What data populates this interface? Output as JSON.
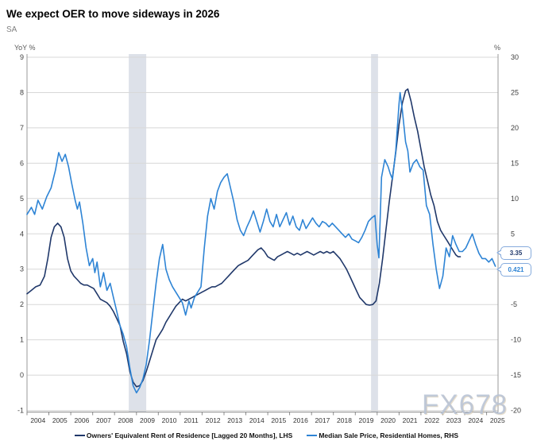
{
  "header": {
    "title": "We expect OER to move sideways in 2026",
    "subtitle": "SA"
  },
  "watermark": {
    "text": "FX678"
  },
  "colors": {
    "oer_line": "#20386a",
    "median_sale_line": "#2e84d5",
    "recession_band": "#dde1e9",
    "gridline": "#d8d8d8",
    "axis_line": "#999999",
    "callout_border": "#86abdd"
  },
  "chart_data": {
    "type": "line",
    "title": "We expect OER to move sideways in 2026",
    "subtitle": "SA",
    "grid": true,
    "legend_position": "bottom",
    "x_axis": {
      "labels": [
        "2004",
        "2005",
        "2006",
        "2007",
        "2008",
        "2009",
        "2010",
        "2011",
        "2012",
        "2013",
        "2014",
        "2015",
        "2016",
        "2017",
        "2018",
        "2019",
        "2020",
        "2021",
        "2022",
        "2023",
        "2024",
        "2025"
      ],
      "range": [
        2004,
        2025.55
      ]
    },
    "left_axis": {
      "label": "YoY %",
      "ticks": [
        9,
        8,
        7,
        6,
        5,
        4,
        3,
        2,
        1,
        0,
        -1
      ],
      "range": [
        -1,
        9
      ]
    },
    "right_axis": {
      "label": "%",
      "ticks": [
        30,
        25,
        20,
        15,
        10,
        5,
        0,
        -5,
        -10,
        -15,
        -20
      ],
      "range": [
        -20,
        30
      ]
    },
    "recession_bands": [
      {
        "from": 2008.65,
        "to": 2009.45
      },
      {
        "from": 2019.72,
        "to": 2020.04
      }
    ],
    "series": [
      {
        "name": "Owners' Equivalent Rent of Residence [Lagged 20 Months], LHS",
        "axis": "left",
        "color": "#20386a",
        "end_label": "3.35",
        "points": [
          [
            2004.0,
            2.3
          ],
          [
            2004.2,
            2.4
          ],
          [
            2004.4,
            2.5
          ],
          [
            2004.6,
            2.55
          ],
          [
            2004.8,
            2.8
          ],
          [
            2004.95,
            3.3
          ],
          [
            2005.1,
            3.9
          ],
          [
            2005.25,
            4.2
          ],
          [
            2005.4,
            4.3
          ],
          [
            2005.55,
            4.2
          ],
          [
            2005.7,
            3.9
          ],
          [
            2005.85,
            3.3
          ],
          [
            2006.0,
            2.95
          ],
          [
            2006.15,
            2.8
          ],
          [
            2006.3,
            2.7
          ],
          [
            2006.45,
            2.6
          ],
          [
            2006.6,
            2.55
          ],
          [
            2006.75,
            2.55
          ],
          [
            2006.9,
            2.5
          ],
          [
            2007.05,
            2.45
          ],
          [
            2007.2,
            2.3
          ],
          [
            2007.35,
            2.15
          ],
          [
            2007.5,
            2.1
          ],
          [
            2007.65,
            2.05
          ],
          [
            2007.8,
            1.95
          ],
          [
            2007.95,
            1.8
          ],
          [
            2008.1,
            1.6
          ],
          [
            2008.25,
            1.4
          ],
          [
            2008.4,
            0.95
          ],
          [
            2008.55,
            0.6
          ],
          [
            2008.7,
            0.1
          ],
          [
            2008.85,
            -0.2
          ],
          [
            2009.0,
            -0.33
          ],
          [
            2009.15,
            -0.3
          ],
          [
            2009.3,
            -0.15
          ],
          [
            2009.45,
            0.1
          ],
          [
            2009.6,
            0.4
          ],
          [
            2009.75,
            0.7
          ],
          [
            2009.9,
            1.0
          ],
          [
            2010.05,
            1.15
          ],
          [
            2010.2,
            1.3
          ],
          [
            2010.35,
            1.5
          ],
          [
            2010.5,
            1.65
          ],
          [
            2010.65,
            1.8
          ],
          [
            2010.8,
            1.95
          ],
          [
            2010.95,
            2.05
          ],
          [
            2011.1,
            2.15
          ],
          [
            2011.25,
            2.1
          ],
          [
            2011.4,
            2.15
          ],
          [
            2011.55,
            2.2
          ],
          [
            2011.7,
            2.25
          ],
          [
            2011.85,
            2.3
          ],
          [
            2012.0,
            2.35
          ],
          [
            2012.15,
            2.4
          ],
          [
            2012.3,
            2.45
          ],
          [
            2012.45,
            2.5
          ],
          [
            2012.6,
            2.5
          ],
          [
            2012.75,
            2.55
          ],
          [
            2012.9,
            2.6
          ],
          [
            2013.05,
            2.7
          ],
          [
            2013.2,
            2.8
          ],
          [
            2013.35,
            2.9
          ],
          [
            2013.5,
            3.0
          ],
          [
            2013.65,
            3.1
          ],
          [
            2013.8,
            3.15
          ],
          [
            2013.95,
            3.2
          ],
          [
            2014.1,
            3.25
          ],
          [
            2014.25,
            3.35
          ],
          [
            2014.4,
            3.45
          ],
          [
            2014.55,
            3.55
          ],
          [
            2014.7,
            3.6
          ],
          [
            2014.85,
            3.5
          ],
          [
            2015.0,
            3.35
          ],
          [
            2015.15,
            3.3
          ],
          [
            2015.3,
            3.25
          ],
          [
            2015.45,
            3.35
          ],
          [
            2015.6,
            3.4
          ],
          [
            2015.75,
            3.45
          ],
          [
            2015.9,
            3.5
          ],
          [
            2016.05,
            3.45
          ],
          [
            2016.2,
            3.4
          ],
          [
            2016.35,
            3.45
          ],
          [
            2016.5,
            3.4
          ],
          [
            2016.65,
            3.45
          ],
          [
            2016.8,
            3.5
          ],
          [
            2016.95,
            3.45
          ],
          [
            2017.1,
            3.4
          ],
          [
            2017.25,
            3.45
          ],
          [
            2017.4,
            3.5
          ],
          [
            2017.55,
            3.45
          ],
          [
            2017.7,
            3.5
          ],
          [
            2017.85,
            3.45
          ],
          [
            2018.0,
            3.5
          ],
          [
            2018.15,
            3.4
          ],
          [
            2018.3,
            3.3
          ],
          [
            2018.45,
            3.15
          ],
          [
            2018.6,
            3.0
          ],
          [
            2018.75,
            2.8
          ],
          [
            2018.9,
            2.6
          ],
          [
            2019.05,
            2.4
          ],
          [
            2019.2,
            2.2
          ],
          [
            2019.35,
            2.1
          ],
          [
            2019.5,
            2.0
          ],
          [
            2019.65,
            1.98
          ],
          [
            2019.8,
            2.0
          ],
          [
            2019.95,
            2.1
          ],
          [
            2020.1,
            2.6
          ],
          [
            2020.25,
            3.3
          ],
          [
            2020.4,
            4.1
          ],
          [
            2020.55,
            4.9
          ],
          [
            2020.7,
            5.6
          ],
          [
            2020.85,
            6.3
          ],
          [
            2021.0,
            7.1
          ],
          [
            2021.15,
            7.7
          ],
          [
            2021.3,
            8.05
          ],
          [
            2021.4,
            8.1
          ],
          [
            2021.55,
            7.75
          ],
          [
            2021.7,
            7.3
          ],
          [
            2021.85,
            6.9
          ],
          [
            2022.0,
            6.4
          ],
          [
            2022.15,
            5.9
          ],
          [
            2022.3,
            5.5
          ],
          [
            2022.45,
            5.1
          ],
          [
            2022.6,
            4.8
          ],
          [
            2022.75,
            4.35
          ],
          [
            2022.9,
            4.1
          ],
          [
            2023.05,
            3.95
          ],
          [
            2023.2,
            3.8
          ],
          [
            2023.35,
            3.65
          ],
          [
            2023.5,
            3.5
          ],
          [
            2023.6,
            3.4
          ],
          [
            2023.7,
            3.35
          ],
          [
            2023.8,
            3.35
          ]
        ]
      },
      {
        "name": "Median Sale Price, Residential Homes, RHS",
        "axis": "right",
        "color": "#2e84d5",
        "end_label": "0.421",
        "points": [
          [
            2004.0,
            7.75
          ],
          [
            2004.2,
            8.75
          ],
          [
            2004.35,
            7.75
          ],
          [
            2004.5,
            9.75
          ],
          [
            2004.7,
            8.5
          ],
          [
            2004.9,
            10.25
          ],
          [
            2005.1,
            11.5
          ],
          [
            2005.3,
            14
          ],
          [
            2005.45,
            16.5
          ],
          [
            2005.6,
            15.25
          ],
          [
            2005.75,
            16.25
          ],
          [
            2005.9,
            14.5
          ],
          [
            2006.05,
            12
          ],
          [
            2006.2,
            9.75
          ],
          [
            2006.3,
            8.5
          ],
          [
            2006.4,
            9.5
          ],
          [
            2006.55,
            6.5
          ],
          [
            2006.7,
            3
          ],
          [
            2006.85,
            0.5
          ],
          [
            2007.0,
            1.5
          ],
          [
            2007.1,
            -0.5
          ],
          [
            2007.2,
            1
          ],
          [
            2007.35,
            -2.5
          ],
          [
            2007.5,
            -0.5
          ],
          [
            2007.65,
            -3
          ],
          [
            2007.8,
            -2
          ],
          [
            2007.95,
            -4
          ],
          [
            2008.1,
            -6
          ],
          [
            2008.25,
            -8
          ],
          [
            2008.4,
            -9.25
          ],
          [
            2008.55,
            -11
          ],
          [
            2008.7,
            -14
          ],
          [
            2008.85,
            -16.5
          ],
          [
            2009.0,
            -17.5
          ],
          [
            2009.15,
            -16.75
          ],
          [
            2009.3,
            -15.5
          ],
          [
            2009.45,
            -13.5
          ],
          [
            2009.6,
            -10
          ],
          [
            2009.75,
            -6
          ],
          [
            2009.9,
            -2
          ],
          [
            2010.05,
            1.5
          ],
          [
            2010.2,
            3.5
          ],
          [
            2010.35,
            0
          ],
          [
            2010.5,
            -1.5
          ],
          [
            2010.65,
            -2.5
          ],
          [
            2010.8,
            -3.25
          ],
          [
            2010.95,
            -4
          ],
          [
            2011.1,
            -4.75
          ],
          [
            2011.25,
            -6.5
          ],
          [
            2011.4,
            -4.5
          ],
          [
            2011.5,
            -5.5
          ],
          [
            2011.65,
            -4
          ],
          [
            2011.8,
            -3.25
          ],
          [
            2011.95,
            -2.5
          ],
          [
            2012.1,
            3
          ],
          [
            2012.25,
            7.5
          ],
          [
            2012.4,
            10
          ],
          [
            2012.55,
            8.5
          ],
          [
            2012.7,
            11
          ],
          [
            2012.85,
            12.25
          ],
          [
            2013.0,
            13
          ],
          [
            2013.15,
            13.5
          ],
          [
            2013.3,
            11.5
          ],
          [
            2013.45,
            9.5
          ],
          [
            2013.6,
            7
          ],
          [
            2013.75,
            5.5
          ],
          [
            2013.9,
            4.75
          ],
          [
            2014.05,
            6
          ],
          [
            2014.2,
            7
          ],
          [
            2014.35,
            8.25
          ],
          [
            2014.5,
            6.75
          ],
          [
            2014.65,
            5.25
          ],
          [
            2014.8,
            6.75
          ],
          [
            2014.95,
            8.5
          ],
          [
            2015.1,
            6.75
          ],
          [
            2015.25,
            6
          ],
          [
            2015.4,
            7.75
          ],
          [
            2015.55,
            6
          ],
          [
            2015.7,
            7
          ],
          [
            2015.85,
            8
          ],
          [
            2016.0,
            6.25
          ],
          [
            2016.15,
            7.5
          ],
          [
            2016.3,
            6
          ],
          [
            2016.45,
            5.5
          ],
          [
            2016.6,
            7
          ],
          [
            2016.75,
            5.75
          ],
          [
            2016.9,
            6.5
          ],
          [
            2017.05,
            7.25
          ],
          [
            2017.2,
            6.5
          ],
          [
            2017.35,
            6
          ],
          [
            2017.5,
            6.75
          ],
          [
            2017.65,
            6.5
          ],
          [
            2017.8,
            6
          ],
          [
            2017.95,
            6.5
          ],
          [
            2018.1,
            6
          ],
          [
            2018.25,
            5.5
          ],
          [
            2018.4,
            5
          ],
          [
            2018.55,
            4.5
          ],
          [
            2018.7,
            5
          ],
          [
            2018.85,
            4.25
          ],
          [
            2019.0,
            4
          ],
          [
            2019.15,
            3.75
          ],
          [
            2019.3,
            4.5
          ],
          [
            2019.45,
            5.5
          ],
          [
            2019.6,
            6.75
          ],
          [
            2019.75,
            7.25
          ],
          [
            2019.9,
            7.6
          ],
          [
            2020.0,
            3.5
          ],
          [
            2020.08,
            1.6
          ],
          [
            2020.2,
            13
          ],
          [
            2020.35,
            15.5
          ],
          [
            2020.5,
            14.5
          ],
          [
            2020.6,
            13.5
          ],
          [
            2020.7,
            12.75
          ],
          [
            2020.85,
            16.75
          ],
          [
            2021.0,
            23.5
          ],
          [
            2021.05,
            25
          ],
          [
            2021.15,
            22.5
          ],
          [
            2021.3,
            18
          ],
          [
            2021.4,
            16.75
          ],
          [
            2021.5,
            13.75
          ],
          [
            2021.65,
            15
          ],
          [
            2021.8,
            15.5
          ],
          [
            2021.95,
            14.5
          ],
          [
            2022.1,
            14
          ],
          [
            2022.25,
            9
          ],
          [
            2022.4,
            7.75
          ],
          [
            2022.55,
            3.5
          ],
          [
            2022.7,
            0
          ],
          [
            2022.85,
            -2.75
          ],
          [
            2023.0,
            -1
          ],
          [
            2023.15,
            3
          ],
          [
            2023.3,
            1.75
          ],
          [
            2023.45,
            4.75
          ],
          [
            2023.6,
            3.5
          ],
          [
            2023.75,
            2.5
          ],
          [
            2023.9,
            2.5
          ],
          [
            2024.05,
            3
          ],
          [
            2024.2,
            4
          ],
          [
            2024.35,
            5
          ],
          [
            2024.5,
            3.5
          ],
          [
            2024.65,
            2.25
          ],
          [
            2024.8,
            1.5
          ],
          [
            2024.95,
            1.5
          ],
          [
            2025.1,
            1
          ],
          [
            2025.25,
            1.5
          ],
          [
            2025.4,
            0.421
          ]
        ]
      }
    ]
  }
}
